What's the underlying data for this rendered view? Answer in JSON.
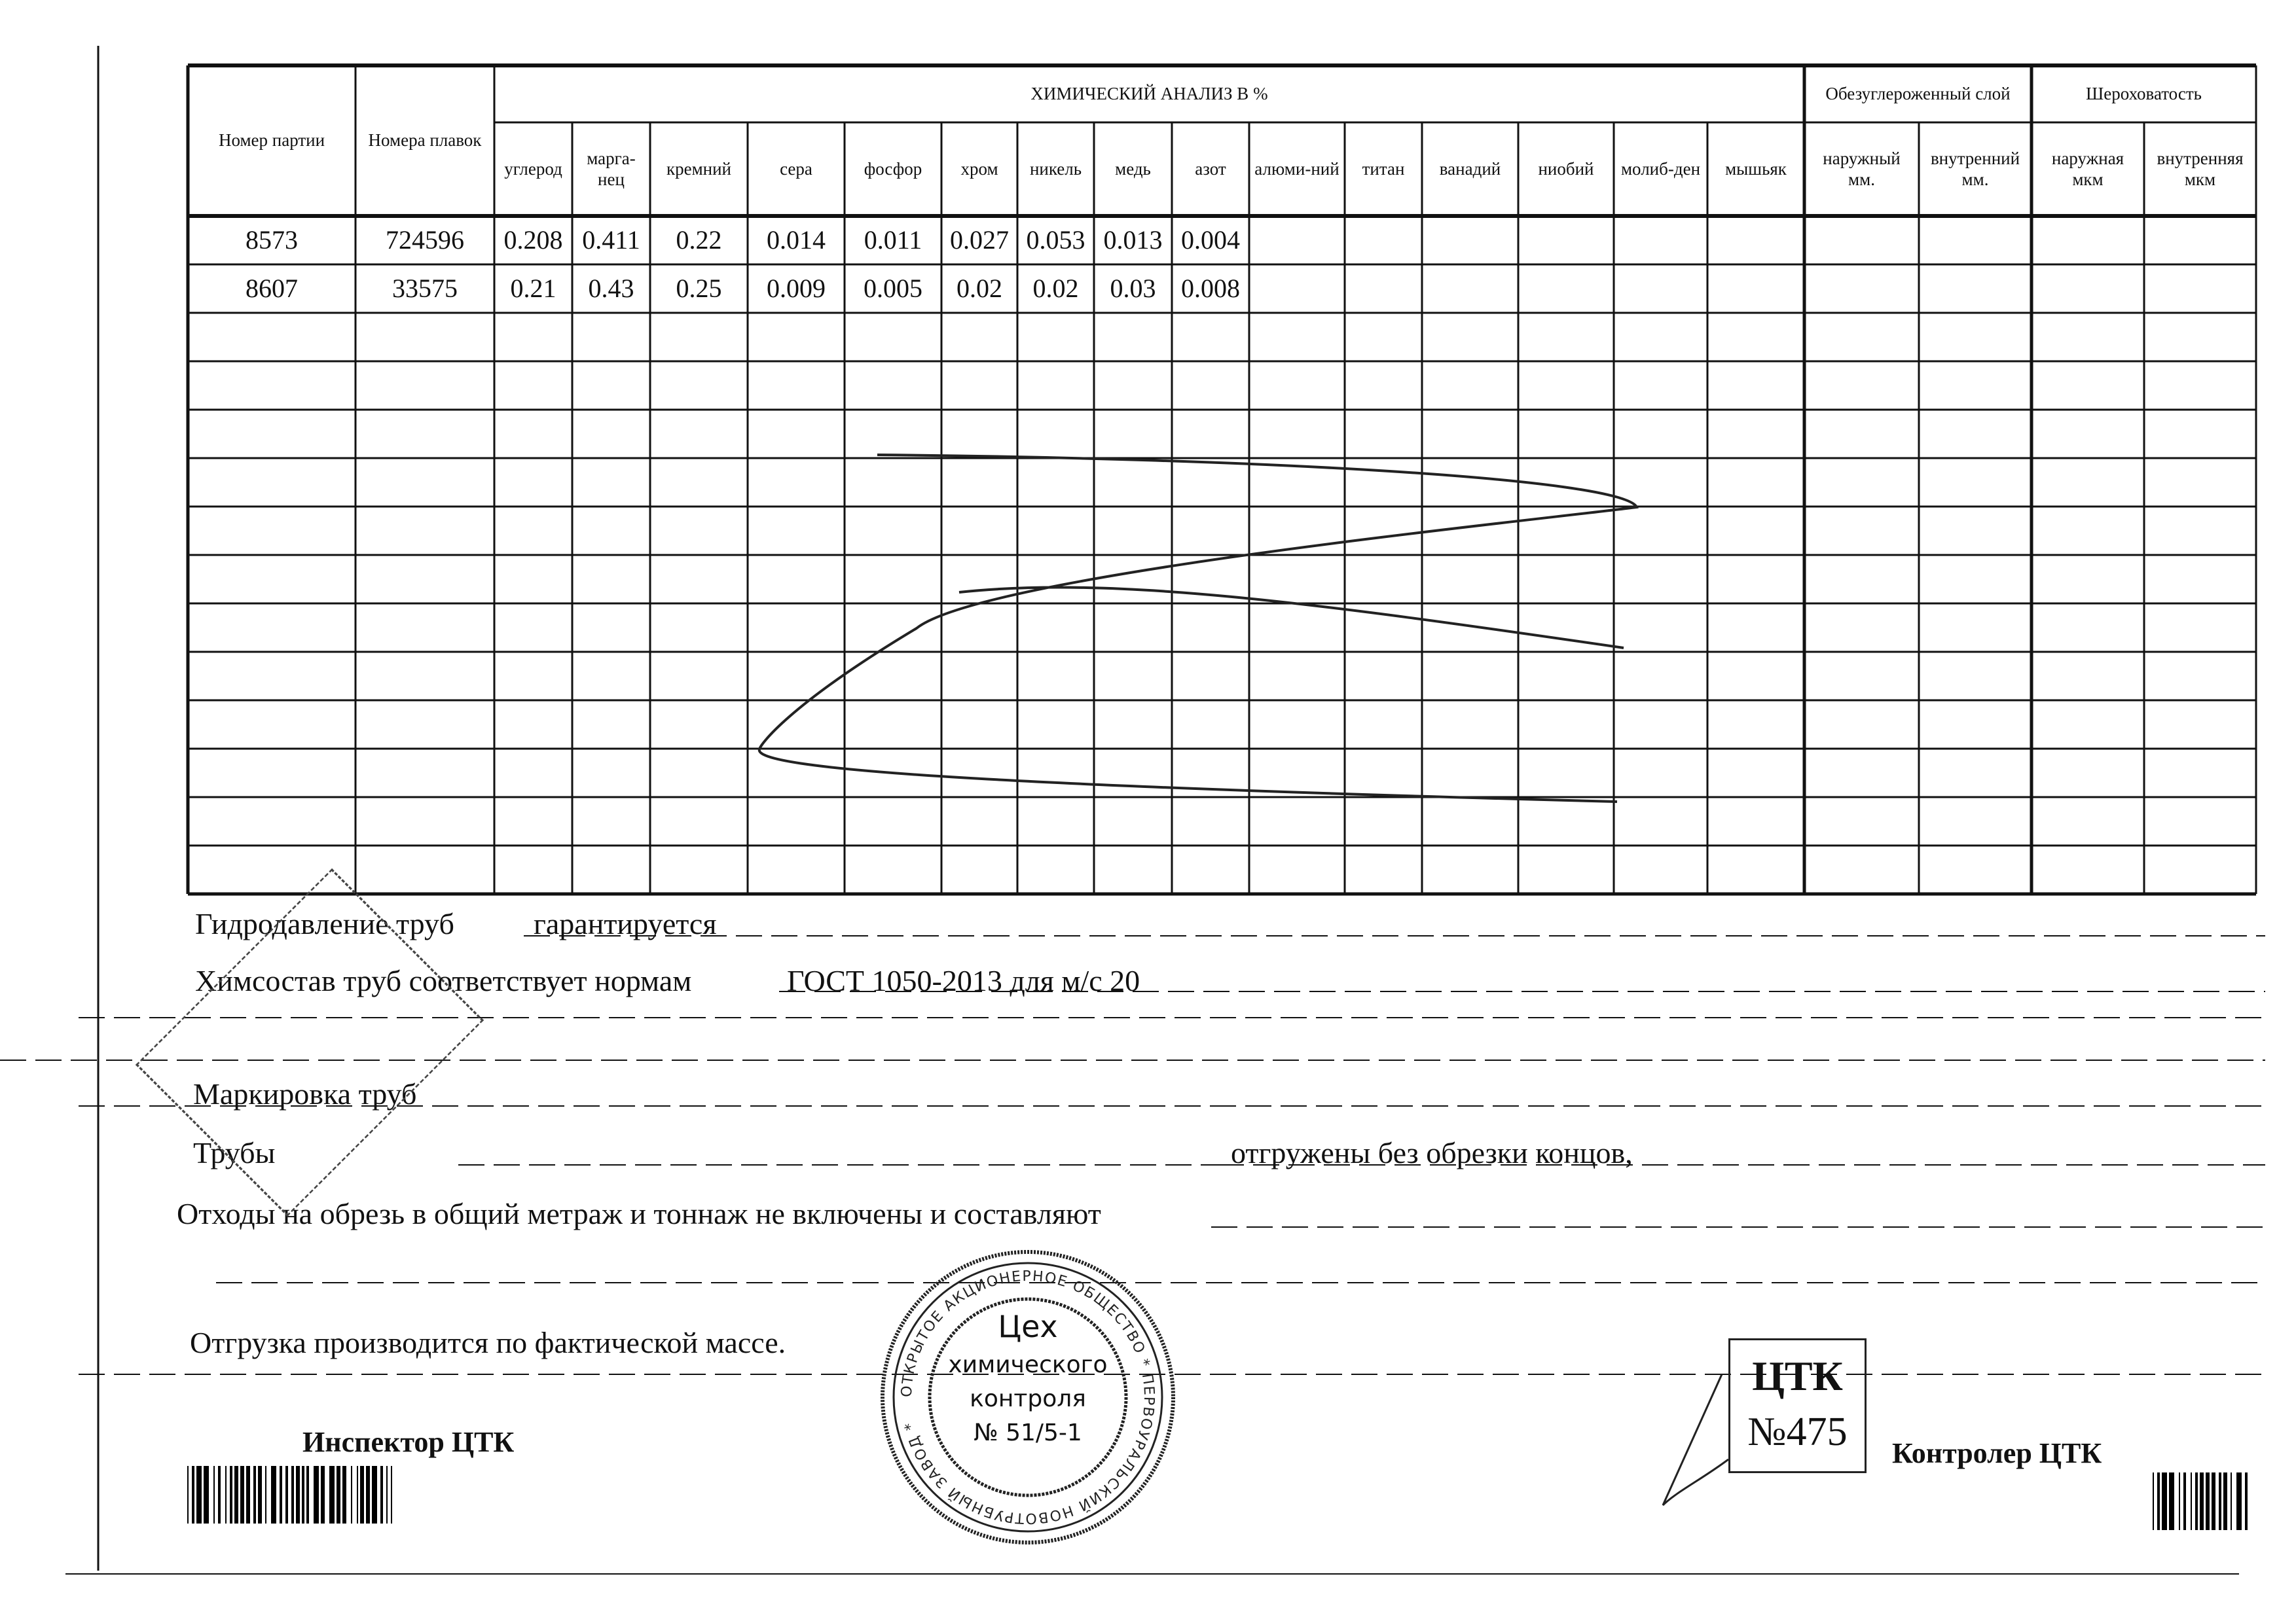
{
  "table": {
    "group_chem": "ХИМИЧЕСКИЙ АНАЛИЗ  В   %",
    "group_decarb": "Обезуглероженный слой",
    "group_rough": "Шероховатость",
    "col_party": "Номер партии",
    "col_heat": "Номера плавок",
    "chem_columns": [
      "углерод",
      "марга-нец",
      "кремний",
      "сера",
      "фосфор",
      "хром",
      "никель",
      "медь",
      "азот",
      "алюми-ний",
      "титан",
      "ванадий",
      "ниобий",
      "молиб-ден",
      "мышьяк"
    ],
    "decarb_columns": [
      "наружный мм.",
      "внутренний мм."
    ],
    "rough_columns": [
      "наружная мкм",
      "внутренняя мкм"
    ],
    "rows": [
      {
        "party": "8573",
        "heat": "724596",
        "values": [
          "0.208",
          "0.411",
          "0.22",
          "0.014",
          "0.011",
          "0.027",
          "0.053",
          "0.013",
          "0.004"
        ]
      },
      {
        "party": "8607",
        "heat": "33575",
        "values": [
          "0.21",
          "0.43",
          "0.25",
          "0.009",
          "0.005",
          "0.02",
          "0.02",
          "0.03",
          "0.008"
        ]
      }
    ]
  },
  "notes": {
    "hydro_label": "Гидродавление труб",
    "hydro_value": "гарантируется",
    "chem_label": "Химсостав труб соответствует нормам",
    "chem_value": "ГОСТ 1050-2013 для м/с 20",
    "marking_label": "Маркировка труб",
    "pipes_label": "Трубы",
    "pipes_suffix": "отгружены без обрезки концов,",
    "waste_label": "Отходы на обрезь в общий метраж и тоннаж не включены и составляют",
    "shipping": "Отгрузка производится по фактической массе."
  },
  "signatures": {
    "inspector": "Инспектор ЦТК",
    "controller": "Контролер ЦТК"
  },
  "stamps": {
    "round_center": [
      "Цех",
      "химического",
      "контроля",
      "№ 51/5-1"
    ],
    "round_ring": "ОТКРЫТОЕ АКЦИОНЕРНОЕ ОБЩЕСТВО * ПЕРВОУРАЛЬСКИЙ НОВОТРУБНЫЙ ЗАВОД *",
    "square_line1": "ЦТК",
    "square_line2": "№475"
  }
}
